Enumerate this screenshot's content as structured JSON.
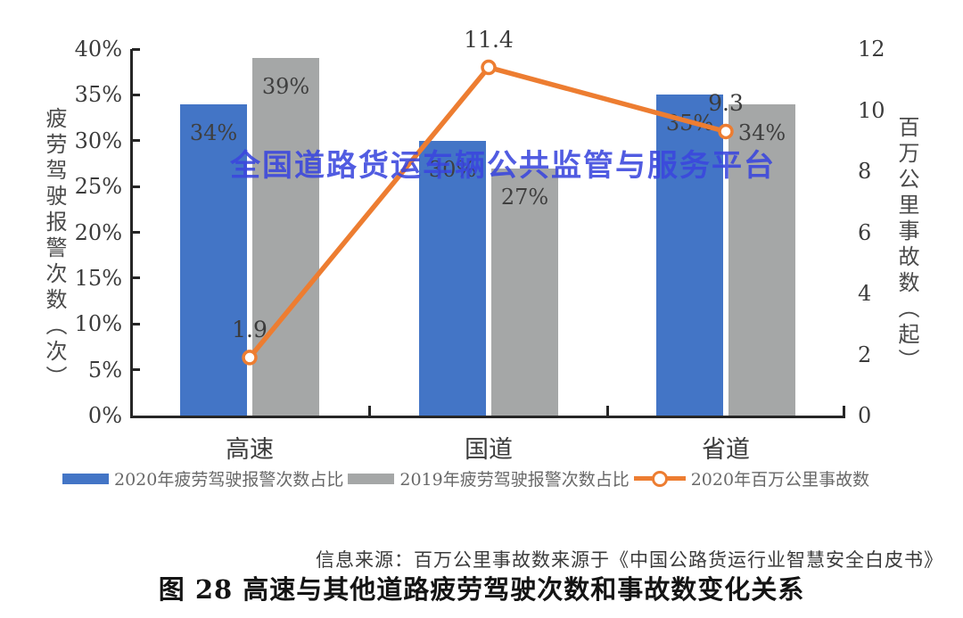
{
  "watermark": "全国道路货运车辆公共监管与服务平台",
  "source_note": "信息来源：百万公里事故数来源于《中国公路货运行业智慧安全白皮书》",
  "caption": "图 28 高速与其他道路疲劳驾驶次数和事故数变化关系",
  "colors": {
    "bar_2020": "#4375C6",
    "bar_2019": "#A5A7A7",
    "line_2020": "#ED7D31",
    "watermark_blue": "#3A46DE",
    "axis": "#262626"
  },
  "chart_data": {
    "type": "combo-bar-line",
    "categories": [
      "高速",
      "国道",
      "省道"
    ],
    "series": [
      {
        "name": "2020年疲劳驾驶报警次数占比",
        "type": "bar",
        "axis": "left",
        "color": "#4375C6",
        "values": [
          34,
          30,
          35
        ],
        "data_labels": [
          "34%",
          "30%",
          "35%"
        ]
      },
      {
        "name": "2019年疲劳驾驶报警次数占比",
        "type": "bar",
        "axis": "left",
        "color": "#A5A7A7",
        "values": [
          39,
          27,
          34
        ],
        "data_labels": [
          "39%",
          "27%",
          "34%"
        ]
      },
      {
        "name": "2020年百万公里事故数",
        "type": "line",
        "axis": "right",
        "color": "#ED7D31",
        "values": [
          1.9,
          11.4,
          9.3
        ],
        "data_labels": [
          "1.9",
          "11.4",
          "9.3"
        ]
      }
    ],
    "left_axis": {
      "title": "疲劳驾驶报警次数（次）",
      "min": 0,
      "max": 40,
      "tick_values": [
        40,
        35,
        30,
        25,
        20,
        15,
        10,
        5,
        0
      ],
      "tick_labels": [
        "40%",
        "35%",
        "30%",
        "25%",
        "20%",
        "15%",
        "10%",
        "5%",
        "0%"
      ]
    },
    "right_axis": {
      "title": "百万公里事故数（起）",
      "min": 0,
      "max": 12,
      "tick_values": [
        12,
        10,
        8,
        6,
        4,
        2,
        0
      ],
      "tick_labels": [
        "12",
        "10",
        "8",
        "6",
        "4",
        "2",
        "0"
      ]
    },
    "grid": false,
    "legend_position": "bottom"
  }
}
